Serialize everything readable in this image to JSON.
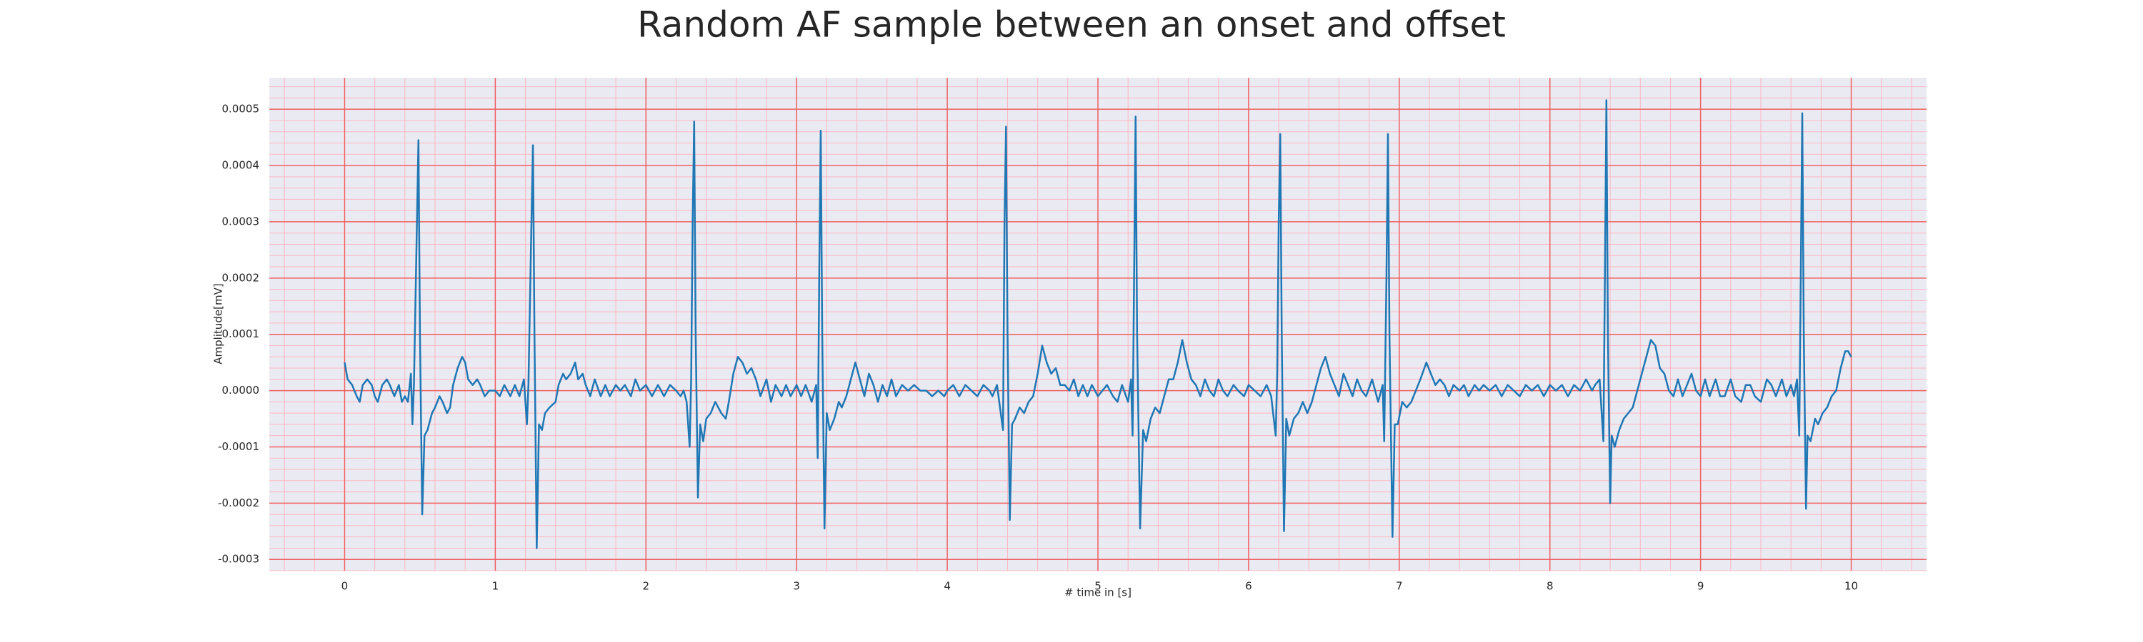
{
  "chart_data": {
    "type": "line",
    "title": "Random AF sample between an onset and offset",
    "xlabel": "# time in [s]",
    "ylabel": "Amplitude[mV]",
    "color": "#1f77b4",
    "grid": true,
    "xlim": [
      -0.5,
      10.5
    ],
    "ylim": [
      -0.00032,
      0.000556
    ],
    "xticks": [
      0,
      1,
      2,
      3,
      4,
      5,
      6,
      7,
      8,
      9,
      10
    ],
    "yticks": [
      {
        "value": -0.0003,
        "label": "-0.0003"
      },
      {
        "value": -0.0002,
        "label": "-0.0002"
      },
      {
        "value": -0.0001,
        "label": "-0.0001"
      },
      {
        "value": 0,
        "label": "0.0000"
      },
      {
        "value": 0.0001,
        "label": "0.0001"
      },
      {
        "value": 0.0002,
        "label": "0.0002"
      },
      {
        "value": 0.0003,
        "label": "0.0003"
      },
      {
        "value": 0.0004,
        "label": "0.0004"
      },
      {
        "value": 0.0005,
        "label": "0.0005"
      }
    ],
    "xminorticks": [
      -0.4,
      -0.2,
      0.2,
      0.4,
      0.6,
      0.8,
      1.2,
      1.4,
      1.6,
      1.8,
      2.2,
      2.4,
      2.6,
      2.8,
      3.2,
      3.4,
      3.6,
      3.8,
      4.2,
      4.4,
      4.6,
      4.8,
      5.2,
      5.4,
      5.6,
      5.8,
      6.2,
      6.4,
      6.6,
      6.8,
      7.2,
      7.4,
      7.6,
      7.8,
      8.2,
      8.4,
      8.6,
      8.8,
      9.2,
      9.4,
      9.6,
      9.8,
      10.2,
      10.4
    ],
    "yminorticks": [
      -0.00032,
      -0.00028,
      -0.00026,
      -0.00024,
      -0.00022,
      -0.00018,
      -0.00016,
      -0.00014,
      -0.00012,
      -8e-05,
      -6e-05,
      -4e-05,
      -2e-05,
      2e-05,
      4e-05,
      6e-05,
      8e-05,
      0.00012,
      0.00014,
      0.00016,
      0.00018,
      0.00022,
      0.00024,
      0.00026,
      0.00028,
      0.00032,
      0.00034,
      0.00036,
      0.00038,
      0.00042,
      0.00044,
      0.00046,
      0.00048,
      0.00052,
      0.00054
    ],
    "x": [
      0,
      0.02,
      0.05,
      0.08,
      0.1,
      0.12,
      0.15,
      0.18,
      0.2,
      0.22,
      0.25,
      0.28,
      0.3,
      0.33,
      0.36,
      0.38,
      0.4,
      0.42,
      0.44,
      0.45,
      0.46,
      0.48,
      0.49,
      0.5,
      0.515,
      0.53,
      0.55,
      0.58,
      0.6,
      0.63,
      0.65,
      0.68,
      0.7,
      0.72,
      0.75,
      0.78,
      0.8,
      0.82,
      0.85,
      0.88,
      0.9,
      0.93,
      0.96,
      1.0,
      1.03,
      1.06,
      1.1,
      1.13,
      1.16,
      1.19,
      1.21,
      1.22,
      1.24,
      1.25,
      1.26,
      1.275,
      1.29,
      1.31,
      1.33,
      1.36,
      1.4,
      1.42,
      1.45,
      1.47,
      1.5,
      1.53,
      1.55,
      1.58,
      1.6,
      1.63,
      1.66,
      1.7,
      1.73,
      1.76,
      1.8,
      1.83,
      1.86,
      1.9,
      1.93,
      1.96,
      2.0,
      2.04,
      2.08,
      2.12,
      2.16,
      2.2,
      2.23,
      2.25,
      2.27,
      2.29,
      2.3,
      2.31,
      2.32,
      2.33,
      2.345,
      2.36,
      2.38,
      2.4,
      2.43,
      2.46,
      2.5,
      2.53,
      2.55,
      2.58,
      2.61,
      2.64,
      2.67,
      2.7,
      2.73,
      2.76,
      2.8,
      2.83,
      2.86,
      2.9,
      2.93,
      2.96,
      3.0,
      3.03,
      3.06,
      3.1,
      3.13,
      3.14,
      3.15,
      3.16,
      3.17,
      3.185,
      3.2,
      3.22,
      3.25,
      3.28,
      3.3,
      3.33,
      3.36,
      3.39,
      3.42,
      3.45,
      3.48,
      3.51,
      3.54,
      3.57,
      3.6,
      3.63,
      3.66,
      3.7,
      3.74,
      3.78,
      3.82,
      3.86,
      3.9,
      3.94,
      3.98,
      4.0,
      4.04,
      4.08,
      4.12,
      4.16,
      4.2,
      4.24,
      4.28,
      4.3,
      4.33,
      4.35,
      4.37,
      4.38,
      4.39,
      4.4,
      4.415,
      4.43,
      4.45,
      4.48,
      4.51,
      4.54,
      4.57,
      4.6,
      4.63,
      4.66,
      4.69,
      4.72,
      4.75,
      4.78,
      4.81,
      4.84,
      4.87,
      4.9,
      4.93,
      4.96,
      5.0,
      5.03,
      5.06,
      5.1,
      5.13,
      5.16,
      5.2,
      5.22,
      5.23,
      5.24,
      5.25,
      5.26,
      5.28,
      5.3,
      5.32,
      5.35,
      5.38,
      5.41,
      5.44,
      5.47,
      5.5,
      5.53,
      5.56,
      5.59,
      5.62,
      5.65,
      5.68,
      5.71,
      5.74,
      5.77,
      5.8,
      5.83,
      5.86,
      5.9,
      5.93,
      5.97,
      6.0,
      6.04,
      6.08,
      6.12,
      6.15,
      6.18,
      6.19,
      6.2,
      6.21,
      6.22,
      6.235,
      6.25,
      6.27,
      6.3,
      6.33,
      6.36,
      6.39,
      6.42,
      6.45,
      6.48,
      6.51,
      6.54,
      6.57,
      6.6,
      6.63,
      6.66,
      6.69,
      6.72,
      6.75,
      6.78,
      6.82,
      6.86,
      6.89,
      6.9,
      6.915,
      6.925,
      6.935,
      6.955,
      6.97,
      6.99,
      7.02,
      7.05,
      7.08,
      7.11,
      7.14,
      7.18,
      7.21,
      7.24,
      7.27,
      7.3,
      7.33,
      7.36,
      7.4,
      7.43,
      7.46,
      7.5,
      7.53,
      7.56,
      7.6,
      7.64,
      7.68,
      7.72,
      7.76,
      7.8,
      7.84,
      7.88,
      7.92,
      7.96,
      8.0,
      8.04,
      8.08,
      8.12,
      8.16,
      8.2,
      8.24,
      8.28,
      8.3,
      8.33,
      8.355,
      8.365,
      8.375,
      8.385,
      8.4,
      8.41,
      8.43,
      8.46,
      8.49,
      8.52,
      8.55,
      8.58,
      8.61,
      8.64,
      8.67,
      8.7,
      8.73,
      8.76,
      8.79,
      8.82,
      8.85,
      8.88,
      8.91,
      8.94,
      8.97,
      9.0,
      9.03,
      9.06,
      9.1,
      9.13,
      9.16,
      9.2,
      9.23,
      9.27,
      9.3,
      9.33,
      9.36,
      9.4,
      9.44,
      9.47,
      9.5,
      9.54,
      9.57,
      9.6,
      9.62,
      9.64,
      9.655,
      9.665,
      9.675,
      9.685,
      9.7,
      9.71,
      9.73,
      9.76,
      9.78,
      9.81,
      9.84,
      9.87,
      9.9,
      9.93,
      9.96,
      9.98,
      10.0
    ],
    "values": [
      5e-05,
      2e-05,
      1e-05,
      -1e-05,
      -2e-05,
      1e-05,
      2e-05,
      1e-05,
      -1e-05,
      -2e-05,
      1e-05,
      2e-05,
      1e-05,
      -1e-05,
      1e-05,
      -2e-05,
      -1e-05,
      -2e-05,
      3e-05,
      -6e-05,
      1e-05,
      0.0003,
      0.000445,
      0.0001,
      -0.00022,
      -8e-05,
      -7e-05,
      -4e-05,
      -3e-05,
      -1e-05,
      -2e-05,
      -4e-05,
      -3e-05,
      1e-05,
      4e-05,
      6e-05,
      5e-05,
      2e-05,
      1e-05,
      2e-05,
      1e-05,
      -1e-05,
      0,
      0,
      -1e-05,
      1e-05,
      -1e-05,
      1e-05,
      -1e-05,
      2e-05,
      -6e-05,
      1e-05,
      0.0003,
      0.000436,
      0.0001,
      -0.00028,
      -6e-05,
      -7e-05,
      -4e-05,
      -3e-05,
      -2e-05,
      1e-05,
      3e-05,
      2e-05,
      3e-05,
      5e-05,
      2e-05,
      3e-05,
      1e-05,
      -1e-05,
      2e-05,
      -1e-05,
      1e-05,
      -1e-05,
      1e-05,
      0,
      1e-05,
      -1e-05,
      2e-05,
      0,
      1e-05,
      -1e-05,
      1e-05,
      -1e-05,
      1e-05,
      0,
      -1e-05,
      0,
      -2e-05,
      -0.0001,
      2e-05,
      0.0003,
      0.000478,
      0.0001,
      -0.00019,
      -6e-05,
      -9e-05,
      -5e-05,
      -4e-05,
      -2e-05,
      -4e-05,
      -5e-05,
      -2e-05,
      3e-05,
      6e-05,
      5e-05,
      3e-05,
      4e-05,
      2e-05,
      -1e-05,
      2e-05,
      -2e-05,
      1e-05,
      -1e-05,
      1e-05,
      -1e-05,
      1e-05,
      -1e-05,
      1e-05,
      -2e-05,
      1e-05,
      -0.00012,
      0.0002,
      0.000462,
      0.0001,
      -0.000245,
      -4e-05,
      -7e-05,
      -5e-05,
      -2e-05,
      -3e-05,
      -1e-05,
      2e-05,
      5e-05,
      2e-05,
      -1e-05,
      3e-05,
      1e-05,
      -2e-05,
      1e-05,
      -1e-05,
      2e-05,
      -1e-05,
      1e-05,
      0,
      1e-05,
      0,
      0,
      -1e-05,
      0,
      -1e-05,
      0,
      1e-05,
      -1e-05,
      1e-05,
      0,
      -1e-05,
      1e-05,
      0,
      -1e-05,
      1e-05,
      -3e-05,
      -7e-05,
      0.0003,
      0.000469,
      0.0001,
      -0.00023,
      -6e-05,
      -5e-05,
      -3e-05,
      -4e-05,
      -2e-05,
      -1e-05,
      3e-05,
      8e-05,
      5e-05,
      3e-05,
      4e-05,
      1e-05,
      1e-05,
      0,
      2e-05,
      -1e-05,
      1e-05,
      -1e-05,
      1e-05,
      -1e-05,
      0,
      1e-05,
      -1e-05,
      -2e-05,
      1e-05,
      -2e-05,
      2e-05,
      -8e-05,
      0.0002,
      0.000487,
      0.0001,
      -0.000245,
      -7e-05,
      -9e-05,
      -5e-05,
      -3e-05,
      -4e-05,
      -1e-05,
      2e-05,
      2e-05,
      5e-05,
      9e-05,
      5e-05,
      2e-05,
      1e-05,
      -1e-05,
      2e-05,
      0,
      -1e-05,
      2e-05,
      0,
      -1e-05,
      1e-05,
      0,
      -1e-05,
      1e-05,
      0,
      -1e-05,
      1e-05,
      -1e-05,
      -8e-05,
      3e-05,
      0.0003,
      0.000456,
      0.0001,
      -0.00025,
      -5e-05,
      -8e-05,
      -5e-05,
      -4e-05,
      -2e-05,
      -4e-05,
      -2e-05,
      1e-05,
      4e-05,
      6e-05,
      3e-05,
      1e-05,
      -1e-05,
      3e-05,
      1e-05,
      -1e-05,
      2e-05,
      0,
      -1e-05,
      2e-05,
      -2e-05,
      1e-05,
      -9e-05,
      0.0002,
      0.000456,
      0.0001,
      -0.00026,
      -6e-05,
      -6e-05,
      -2e-05,
      -3e-05,
      -2e-05,
      0,
      2e-05,
      5e-05,
      3e-05,
      1e-05,
      2e-05,
      1e-05,
      -1e-05,
      1e-05,
      0,
      1e-05,
      -1e-05,
      1e-05,
      0,
      1e-05,
      0,
      1e-05,
      -1e-05,
      1e-05,
      0,
      -1e-05,
      1e-05,
      0,
      1e-05,
      -1e-05,
      1e-05,
      0,
      1e-05,
      -1e-05,
      1e-05,
      0,
      2e-05,
      0,
      1e-05,
      2e-05,
      -9e-05,
      0.0002,
      0.000516,
      0.0001,
      -0.0002,
      -8e-05,
      -0.0001,
      -7e-05,
      -5e-05,
      -4e-05,
      -3e-05,
      0,
      3e-05,
      6e-05,
      9e-05,
      8e-05,
      4e-05,
      3e-05,
      0,
      -1e-05,
      2e-05,
      -1e-05,
      1e-05,
      3e-05,
      0,
      -1e-05,
      2e-05,
      -1e-05,
      2e-05,
      -1e-05,
      -1e-05,
      2e-05,
      -1e-05,
      -2e-05,
      1e-05,
      1e-05,
      -1e-05,
      -2e-05,
      2e-05,
      1e-05,
      -1e-05,
      2e-05,
      -1e-05,
      1e-05,
      -1e-05,
      2e-05,
      -8e-05,
      0.0002,
      0.000493,
      0.0001,
      -0.00021,
      -8e-05,
      -9e-05,
      -5e-05,
      -6e-05,
      -4e-05,
      -3e-05,
      -1e-05,
      0,
      4e-05,
      7e-05,
      7e-05,
      6e-05
    ]
  }
}
